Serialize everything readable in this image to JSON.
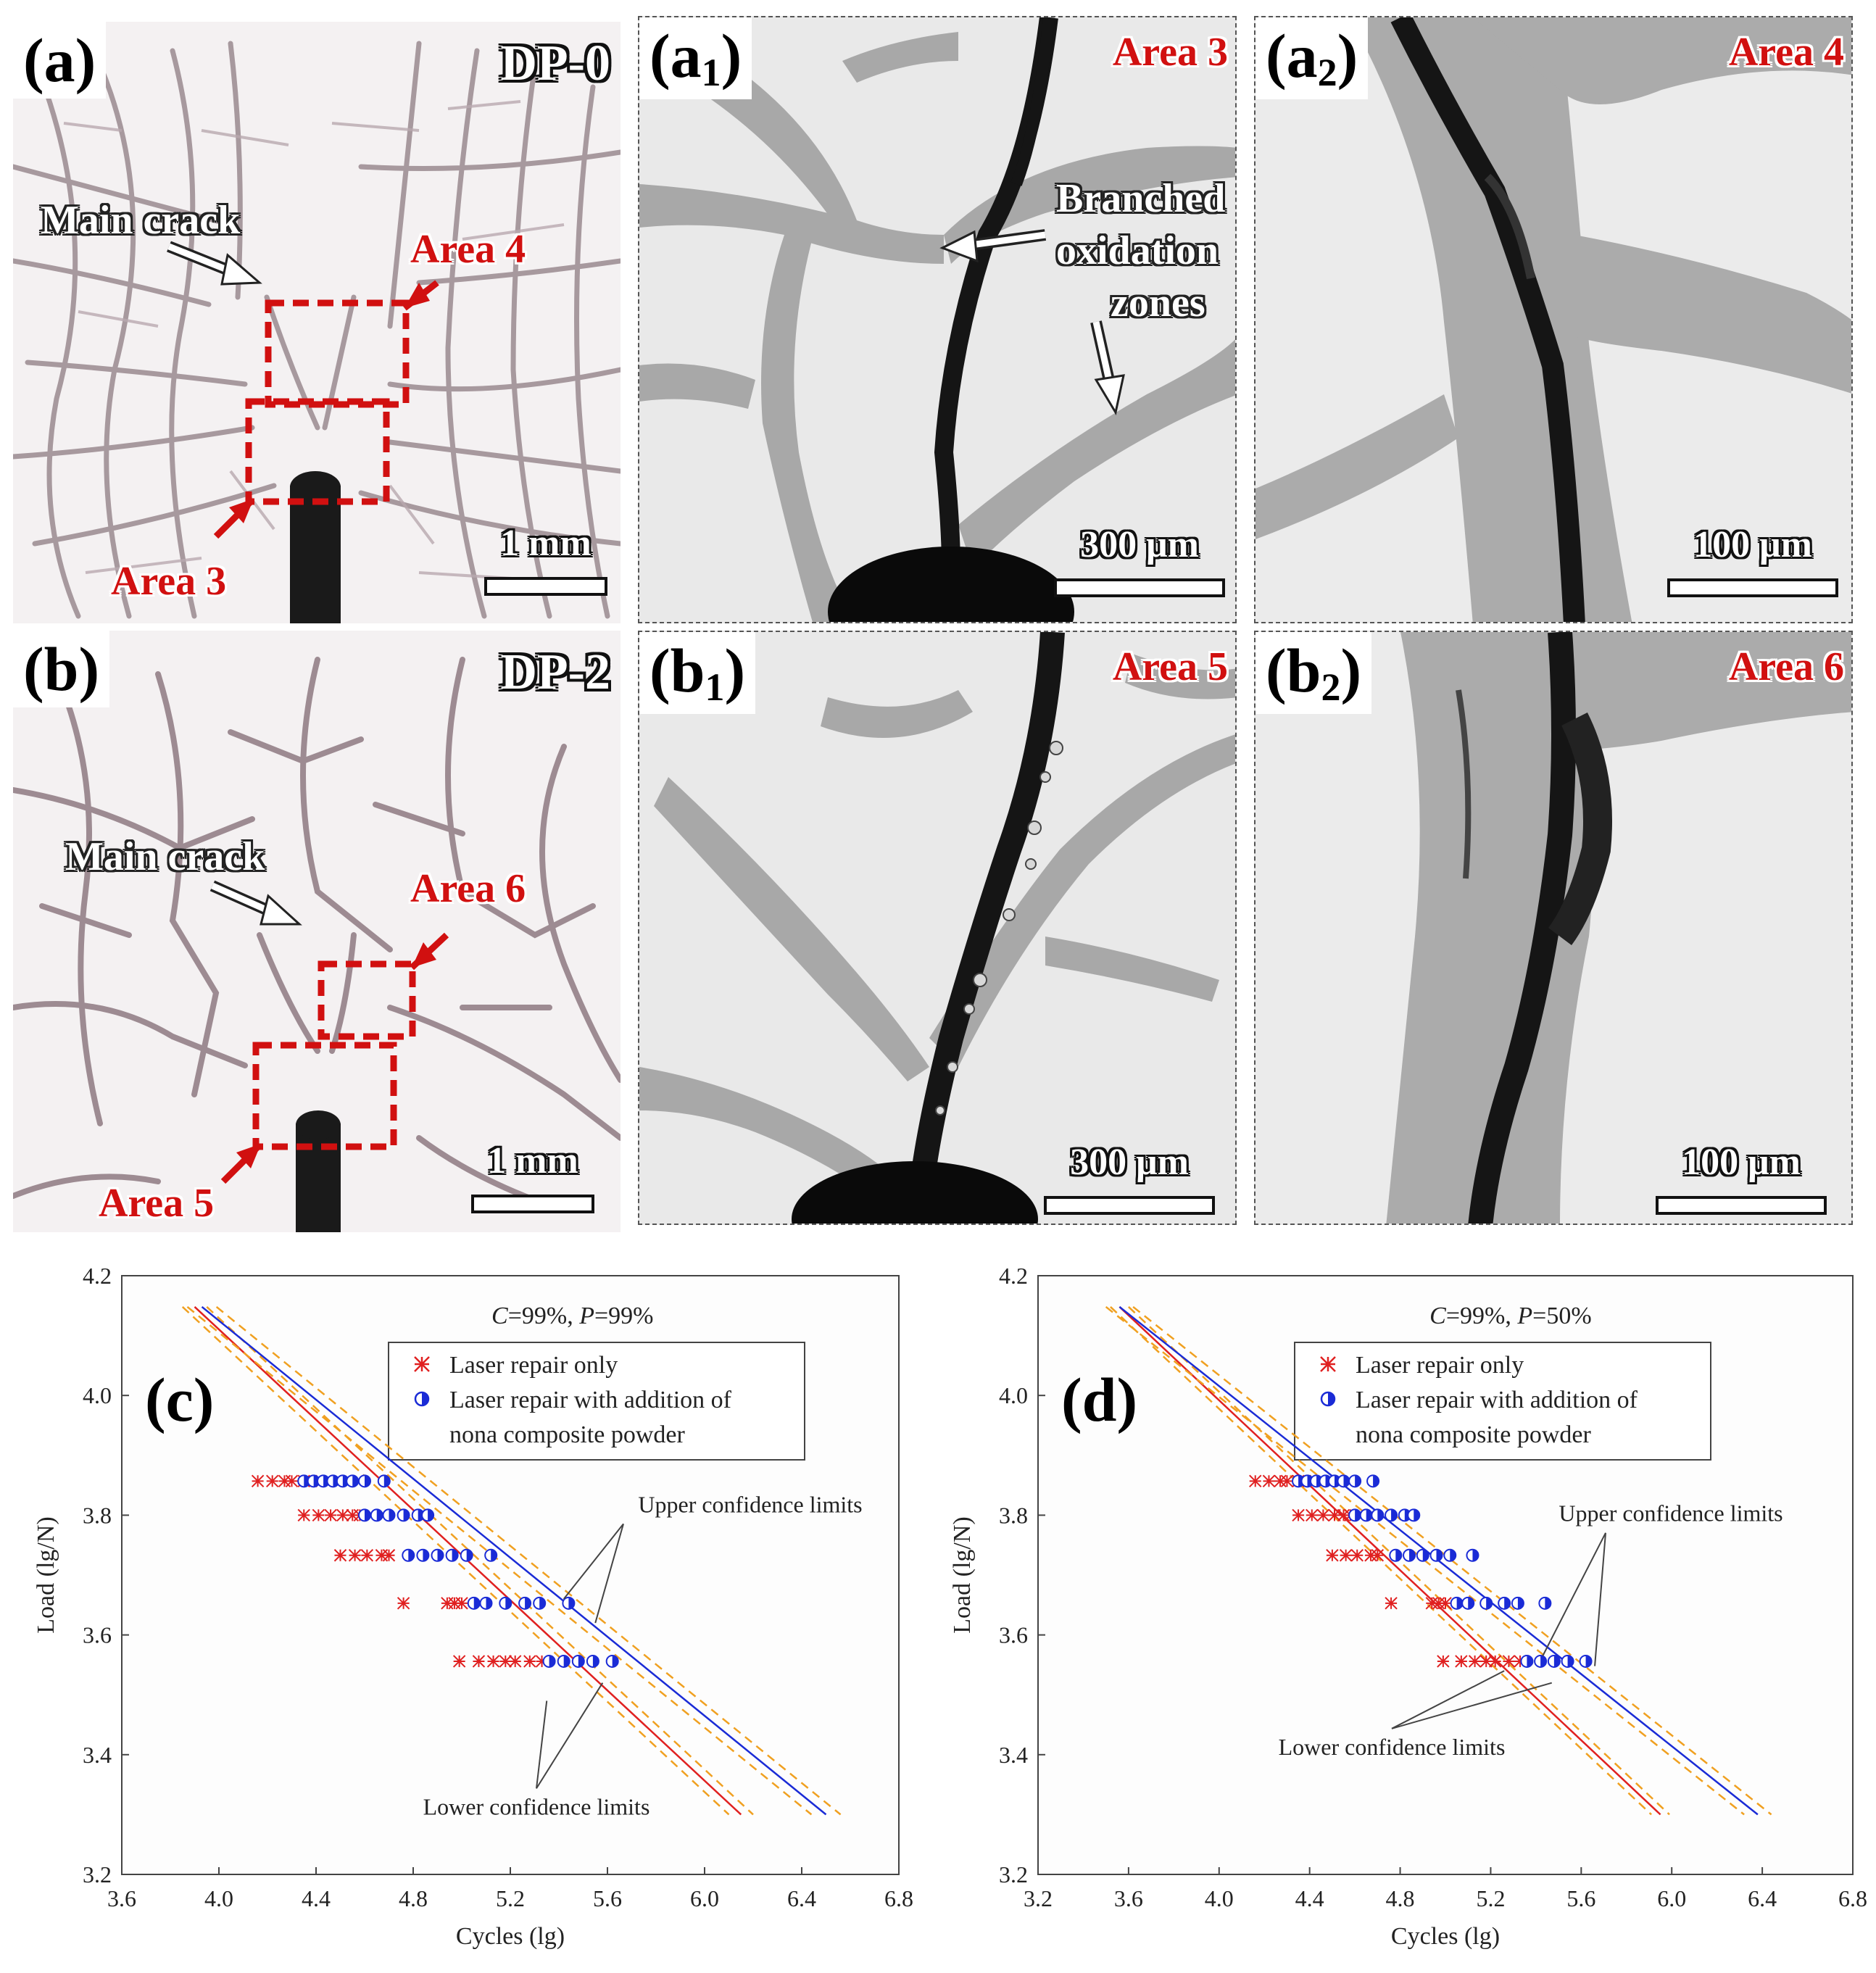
{
  "micrographs": {
    "a": {
      "tag": "(a)",
      "dp_label": "DP-0",
      "main_crack": "Main crack",
      "area_upper": "Area 4",
      "area_lower": "Area 3",
      "scale": "1 mm"
    },
    "a1": {
      "tag_main": "(a",
      "tag_sub": "1",
      "tag_close": ")",
      "area": "Area 3",
      "scale": "300 μm",
      "annotation": [
        "Branched",
        "oxidation",
        "zones"
      ]
    },
    "a2": {
      "tag_main": "(a",
      "tag_sub": "2",
      "tag_close": ")",
      "area": "Area 4",
      "scale": "100 μm"
    },
    "b": {
      "tag": "(b)",
      "dp_label": "DP-2",
      "main_crack": "Main crack",
      "area_upper": "Area 6",
      "area_lower": "Area 5",
      "scale": "1 mm"
    },
    "b1": {
      "tag_main": "(b",
      "tag_sub": "1",
      "tag_close": ")",
      "area": "Area 5",
      "scale": "300 μm"
    },
    "b2": {
      "tag_main": "(b",
      "tag_sub": "2",
      "tag_close": ")",
      "area": "Area 6",
      "scale": "100 μm"
    }
  },
  "colors": {
    "laser_only": "#e02020",
    "with_powder": "#1a2bd6",
    "confidence": "#f0a020",
    "annotation_red": "#d11010"
  },
  "chart_data": [
    {
      "type": "scatter",
      "panel": "(c)",
      "title": "C=99%, P=99%",
      "title_parts": [
        "C",
        "=99%, ",
        "P",
        "=99%"
      ],
      "xlabel": "Cycles (lg)",
      "ylabel": "Load (lg/N)",
      "xlim": [
        3.6,
        6.8
      ],
      "ylim": [
        3.2,
        4.2
      ],
      "xticks": [
        "3.6",
        "4.0",
        "4.4",
        "4.8",
        "5.2",
        "5.6",
        "6.0",
        "6.4",
        "6.8"
      ],
      "yticks": [
        "3.2",
        "3.4",
        "3.6",
        "3.8",
        "4.0",
        "4.2"
      ],
      "legend": [
        "Laser repair only",
        "Laser repair with addition of",
        "nona composite powder"
      ],
      "annotations": [
        "Upper confidence limits",
        "Lower confidence limits"
      ],
      "series": [
        {
          "name": "Laser repair only",
          "marker": "asterisk",
          "points": [
            [
              4.16,
              3.857
            ],
            [
              4.22,
              3.857
            ],
            [
              4.27,
              3.857
            ],
            [
              4.3,
              3.857
            ],
            [
              4.35,
              3.857
            ],
            [
              4.38,
              3.857
            ],
            [
              4.35,
              3.8
            ],
            [
              4.41,
              3.8
            ],
            [
              4.46,
              3.8
            ],
            [
              4.51,
              3.8
            ],
            [
              4.55,
              3.8
            ],
            [
              4.58,
              3.8
            ],
            [
              4.5,
              3.733
            ],
            [
              4.56,
              3.733
            ],
            [
              4.61,
              3.733
            ],
            [
              4.67,
              3.733
            ],
            [
              4.7,
              3.733
            ],
            [
              4.76,
              3.653
            ],
            [
              4.94,
              3.653
            ],
            [
              4.97,
              3.653
            ],
            [
              5.0,
              3.653
            ],
            [
              4.99,
              3.556
            ],
            [
              5.07,
              3.556
            ],
            [
              5.13,
              3.556
            ],
            [
              5.18,
              3.556
            ],
            [
              5.22,
              3.556
            ],
            [
              5.28,
              3.556
            ],
            [
              5.33,
              3.556
            ]
          ],
          "fit": {
            "x": [
              3.9,
              6.15
            ],
            "y": [
              4.148,
              3.3
            ]
          },
          "upper": {
            "x": [
              3.95,
              6.2
            ],
            "y": [
              4.148,
              3.3
            ]
          },
          "lower": {
            "x": [
              3.85,
              6.1
            ],
            "y": [
              4.148,
              3.3
            ]
          }
        },
        {
          "name": "Laser repair with addition of nona composite powder",
          "marker": "half-circle",
          "points": [
            [
              4.35,
              3.857
            ],
            [
              4.39,
              3.857
            ],
            [
              4.43,
              3.857
            ],
            [
              4.47,
              3.857
            ],
            [
              4.51,
              3.857
            ],
            [
              4.55,
              3.857
            ],
            [
              4.6,
              3.857
            ],
            [
              4.68,
              3.857
            ],
            [
              4.6,
              3.8
            ],
            [
              4.65,
              3.8
            ],
            [
              4.7,
              3.8
            ],
            [
              4.76,
              3.8
            ],
            [
              4.82,
              3.8
            ],
            [
              4.86,
              3.8
            ],
            [
              4.78,
              3.733
            ],
            [
              4.84,
              3.733
            ],
            [
              4.9,
              3.733
            ],
            [
              4.96,
              3.733
            ],
            [
              5.02,
              3.733
            ],
            [
              5.12,
              3.733
            ],
            [
              5.05,
              3.653
            ],
            [
              5.1,
              3.653
            ],
            [
              5.18,
              3.653
            ],
            [
              5.26,
              3.653
            ],
            [
              5.32,
              3.653
            ],
            [
              5.44,
              3.653
            ],
            [
              5.36,
              3.556
            ],
            [
              5.42,
              3.556
            ],
            [
              5.48,
              3.556
            ],
            [
              5.54,
              3.556
            ],
            [
              5.62,
              3.556
            ]
          ],
          "fit": {
            "x": [
              3.93,
              6.5
            ],
            "y": [
              4.148,
              3.3
            ]
          },
          "upper": {
            "x": [
              3.99,
              6.56
            ],
            "y": [
              4.148,
              3.3
            ]
          },
          "lower": {
            "x": [
              3.87,
              6.44
            ],
            "y": [
              4.148,
              3.3
            ]
          }
        }
      ]
    },
    {
      "type": "scatter",
      "panel": "(d)",
      "title": "C=99%, P=50%",
      "title_parts": [
        "C",
        "=99%, ",
        "P",
        "=50%"
      ],
      "xlabel": "Cycles (lg)",
      "ylabel": "Load (lg/N)",
      "xlim": [
        3.2,
        6.8
      ],
      "ylim": [
        3.2,
        4.2
      ],
      "xticks": [
        "3.2",
        "3.6",
        "4.0",
        "4.4",
        "4.8",
        "5.2",
        "5.6",
        "6.0",
        "6.4",
        "6.8"
      ],
      "yticks": [
        "3.2",
        "3.4",
        "3.6",
        "3.8",
        "4.0",
        "4.2"
      ],
      "legend": [
        "Laser repair only",
        "Laser repair with addition of",
        "nona composite powder"
      ],
      "annotations": [
        "Upper confidence limits",
        "Lower confidence limits"
      ],
      "series": [
        {
          "name": "Laser repair only",
          "marker": "asterisk",
          "points": [
            [
              4.16,
              3.857
            ],
            [
              4.22,
              3.857
            ],
            [
              4.27,
              3.857
            ],
            [
              4.3,
              3.857
            ],
            [
              4.35,
              3.857
            ],
            [
              4.38,
              3.857
            ],
            [
              4.35,
              3.8
            ],
            [
              4.41,
              3.8
            ],
            [
              4.46,
              3.8
            ],
            [
              4.51,
              3.8
            ],
            [
              4.55,
              3.8
            ],
            [
              4.58,
              3.8
            ],
            [
              4.5,
              3.733
            ],
            [
              4.56,
              3.733
            ],
            [
              4.61,
              3.733
            ],
            [
              4.67,
              3.733
            ],
            [
              4.7,
              3.733
            ],
            [
              4.76,
              3.653
            ],
            [
              4.94,
              3.653
            ],
            [
              4.97,
              3.653
            ],
            [
              5.0,
              3.653
            ],
            [
              4.99,
              3.556
            ],
            [
              5.07,
              3.556
            ],
            [
              5.13,
              3.556
            ],
            [
              5.18,
              3.556
            ],
            [
              5.22,
              3.556
            ],
            [
              5.28,
              3.556
            ],
            [
              5.33,
              3.556
            ]
          ],
          "fit": {
            "x": [
              3.56,
              5.95
            ],
            "y": [
              4.148,
              3.3
            ]
          },
          "upper": {
            "x": [
              3.6,
              5.99
            ],
            "y": [
              4.148,
              3.3
            ]
          },
          "lower": {
            "x": [
              3.52,
              5.91
            ],
            "y": [
              4.148,
              3.3
            ]
          }
        },
        {
          "name": "Laser repair with addition of nona composite powder",
          "marker": "half-circle",
          "points": [
            [
              4.35,
              3.857
            ],
            [
              4.39,
              3.857
            ],
            [
              4.43,
              3.857
            ],
            [
              4.47,
              3.857
            ],
            [
              4.51,
              3.857
            ],
            [
              4.55,
              3.857
            ],
            [
              4.6,
              3.857
            ],
            [
              4.68,
              3.857
            ],
            [
              4.6,
              3.8
            ],
            [
              4.65,
              3.8
            ],
            [
              4.7,
              3.8
            ],
            [
              4.76,
              3.8
            ],
            [
              4.82,
              3.8
            ],
            [
              4.86,
              3.8
            ],
            [
              4.78,
              3.733
            ],
            [
              4.84,
              3.733
            ],
            [
              4.9,
              3.733
            ],
            [
              4.96,
              3.733
            ],
            [
              5.02,
              3.733
            ],
            [
              5.12,
              3.733
            ],
            [
              5.05,
              3.653
            ],
            [
              5.1,
              3.653
            ],
            [
              5.18,
              3.653
            ],
            [
              5.26,
              3.653
            ],
            [
              5.32,
              3.653
            ],
            [
              5.44,
              3.653
            ],
            [
              5.36,
              3.556
            ],
            [
              5.42,
              3.556
            ],
            [
              5.48,
              3.556
            ],
            [
              5.54,
              3.556
            ],
            [
              5.62,
              3.556
            ]
          ],
          "fit": {
            "x": [
              3.56,
              6.38
            ],
            "y": [
              4.148,
              3.3
            ]
          },
          "upper": {
            "x": [
              3.62,
              6.44
            ],
            "y": [
              4.148,
              3.3
            ]
          },
          "lower": {
            "x": [
              3.5,
              6.32
            ],
            "y": [
              4.148,
              3.3
            ]
          }
        }
      ]
    }
  ]
}
